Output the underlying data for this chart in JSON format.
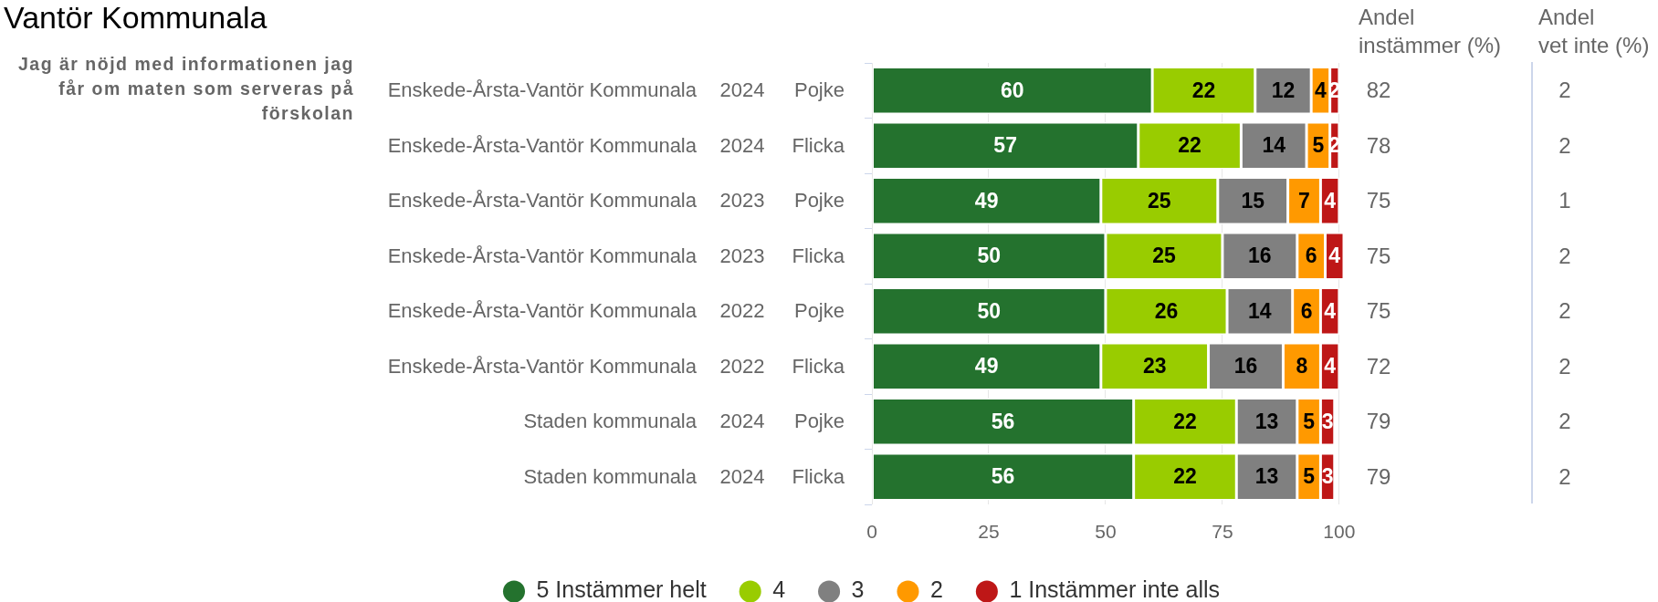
{
  "chart_data": {
    "type": "bar",
    "orientation": "horizontal",
    "stacked": true,
    "title": "Vantör Kommunala",
    "subtitle": "Jag är nöjd med informationen jag får om maten som serveras på förskolan",
    "categories": [
      "Enskede-Årsta-Vantör Kommunala 2024 Pojke",
      "Enskede-Årsta-Vantör Kommunala 2024 Flicka",
      "Enskede-Årsta-Vantör Kommunala 2023 Pojke",
      "Enskede-Årsta-Vantör Kommunala 2023 Flicka",
      "Enskede-Årsta-Vantör Kommunala 2022 Pojke",
      "Enskede-Årsta-Vantör Kommunala 2022 Flicka",
      "Staden kommunala 2024 Pojke",
      "Staden kommunala 2024 Flicka"
    ],
    "series": [
      {
        "name": "5 Instämmer helt",
        "color": "#24722e",
        "values": [
          60,
          57,
          49,
          50,
          50,
          49,
          56,
          56
        ]
      },
      {
        "name": "4",
        "color": "#99cc00",
        "values": [
          22,
          22,
          25,
          25,
          26,
          23,
          22,
          22
        ]
      },
      {
        "name": "3",
        "color": "#808080",
        "values": [
          12,
          14,
          15,
          16,
          14,
          16,
          13,
          13
        ]
      },
      {
        "name": "2",
        "color": "#ff9900",
        "values": [
          4,
          5,
          7,
          6,
          6,
          8,
          5,
          5
        ]
      },
      {
        "name": "1 Instämmer inte alls",
        "color": "#be1717",
        "values": [
          2,
          2,
          4,
          4,
          4,
          4,
          3,
          3
        ]
      }
    ],
    "xlim": [
      0,
      101
    ],
    "xticks": [
      0,
      25,
      50,
      75,
      100
    ],
    "grid": "x",
    "legend": "bottom",
    "data_labels": true,
    "annotations": [
      "Andel instämmer (%)",
      "82",
      "78",
      "75",
      "75",
      "75",
      "72",
      "79",
      "79",
      "Andel vet inte (%)",
      "2",
      "2",
      "1",
      "2",
      "2",
      "2",
      "2",
      "2"
    ]
  }
}
